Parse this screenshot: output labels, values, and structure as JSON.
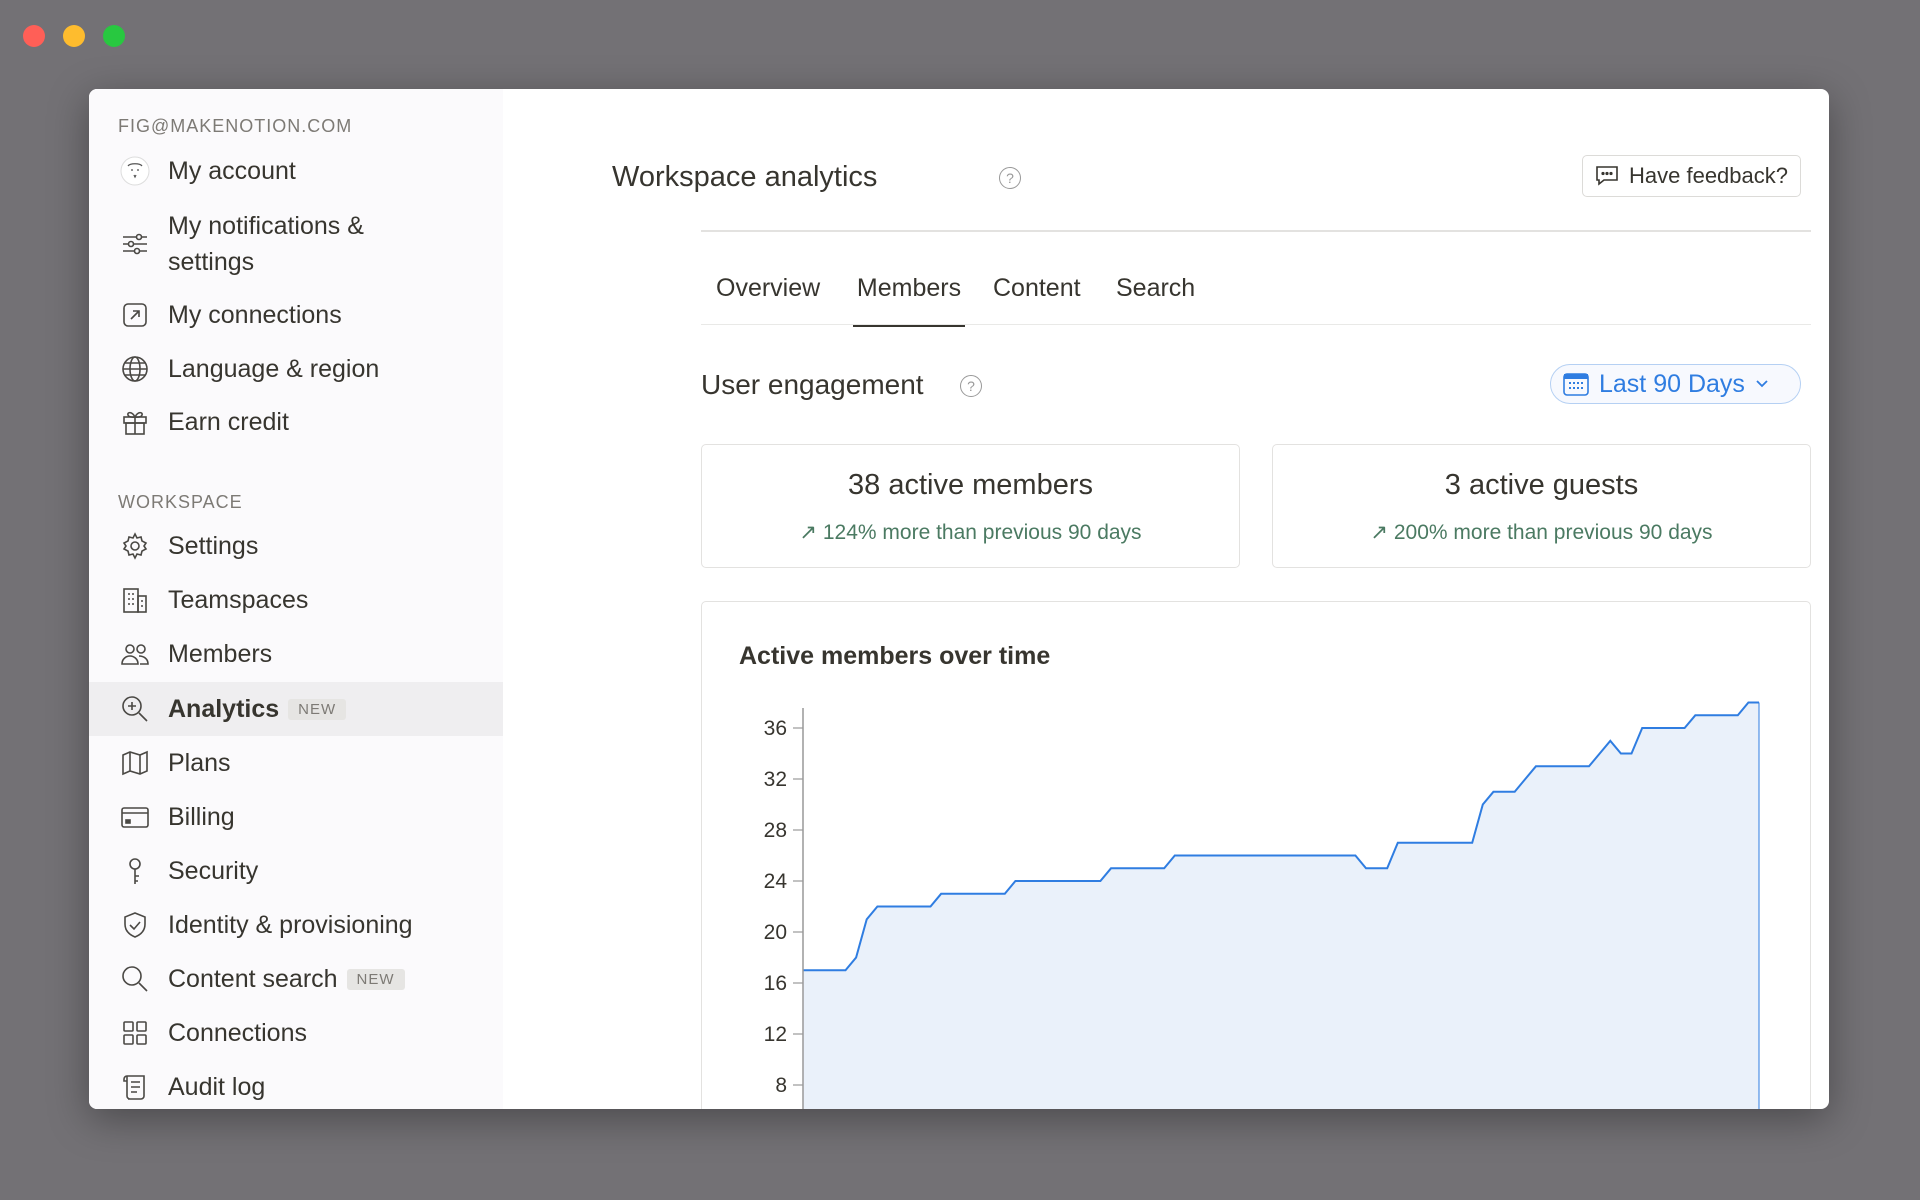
{
  "window": {
    "controls": [
      {
        "name": "close",
        "color": "#ff5f57"
      },
      {
        "name": "minimize",
        "color": "#febc2e"
      },
      {
        "name": "zoom",
        "color": "#28c840"
      }
    ]
  },
  "sidebar": {
    "account_email": "FIG@MAKENOTION.COM",
    "account_items": [
      {
        "label": "My account",
        "icon": "avatar"
      },
      {
        "label": "My notifications & settings",
        "icon": "sliders-icon"
      },
      {
        "label": "My connections",
        "icon": "arrow-box-icon"
      },
      {
        "label": "Language & region",
        "icon": "globe-icon"
      },
      {
        "label": "Earn credit",
        "icon": "gift-icon"
      }
    ],
    "workspace_heading": "WORKSPACE",
    "workspace_items": [
      {
        "label": "Settings",
        "icon": "gear-icon"
      },
      {
        "label": "Teamspaces",
        "icon": "building-icon"
      },
      {
        "label": "Members",
        "icon": "people-icon"
      },
      {
        "label": "Analytics",
        "icon": "zoom-search-icon",
        "badge": "NEW",
        "active": true
      },
      {
        "label": "Plans",
        "icon": "map-icon"
      },
      {
        "label": "Billing",
        "icon": "credit-card-icon"
      },
      {
        "label": "Security",
        "icon": "key-icon"
      },
      {
        "label": "Identity & provisioning",
        "icon": "shield-icon"
      },
      {
        "label": "Content search",
        "icon": "search-icon",
        "badge": "NEW"
      },
      {
        "label": "Connections",
        "icon": "grid-icon"
      },
      {
        "label": "Audit log",
        "icon": "scroll-icon"
      }
    ]
  },
  "header": {
    "title": "Workspace analytics",
    "help": "?",
    "feedback_label": "Have feedback?"
  },
  "tabs": [
    {
      "label": "Overview"
    },
    {
      "label": "Members",
      "active": true
    },
    {
      "label": "Content"
    },
    {
      "label": "Search"
    }
  ],
  "engagement": {
    "title": "User engagement",
    "help": "?",
    "date_range": "Last 90 Days",
    "accent": "#2f7de1",
    "cards": [
      {
        "title": "38 active members",
        "delta": "124% more than previous 90 days"
      },
      {
        "title": "3 active guests",
        "delta": "200% more than previous 90 days"
      }
    ]
  },
  "chart_data": {
    "type": "area",
    "title": "Active members over time",
    "ylim": [
      4,
      38
    ],
    "yticks": [
      8,
      12,
      16,
      20,
      24,
      28,
      32,
      36
    ],
    "x_days": "0-90",
    "line_color": "#2f7de1",
    "fill_color": "#eaf1fa",
    "grid": false,
    "values": [
      17,
      17,
      17,
      17,
      17,
      18,
      21,
      22,
      22,
      22,
      22,
      22,
      22,
      23,
      23,
      23,
      23,
      23,
      23,
      23,
      24,
      24,
      24,
      24,
      24,
      24,
      24,
      24,
      24,
      25,
      25,
      25,
      25,
      25,
      25,
      26,
      26,
      26,
      26,
      26,
      26,
      26,
      26,
      26,
      26,
      26,
      26,
      26,
      26,
      26,
      26,
      26,
      26,
      25,
      25,
      25,
      27,
      27,
      27,
      27,
      27,
      27,
      27,
      27,
      30,
      31,
      31,
      31,
      32,
      33,
      33,
      33,
      33,
      33,
      33,
      34,
      35,
      34,
      34,
      36,
      36,
      36,
      36,
      36,
      37,
      37,
      37,
      37,
      37,
      38,
      38
    ]
  }
}
